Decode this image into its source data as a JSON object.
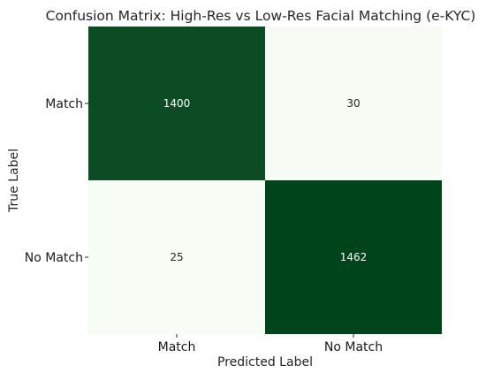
{
  "chart_data": {
    "type": "heatmap",
    "title": "Confusion Matrix: High-Res vs Low-Res Facial Matching (e-KYC)",
    "xlabel": "Predicted Label",
    "ylabel": "True Label",
    "x_categories": [
      "Match",
      "No Match"
    ],
    "y_categories": [
      "Match",
      "No Match"
    ],
    "values": [
      [
        1400,
        30
      ],
      [
        25,
        1462
      ]
    ],
    "colormap": "Greens",
    "colorbar": false,
    "colors": {
      "low": "#f7fcf5",
      "high": "#00441b",
      "text_dark": "#262626",
      "text_light": "#ffffff"
    }
  }
}
